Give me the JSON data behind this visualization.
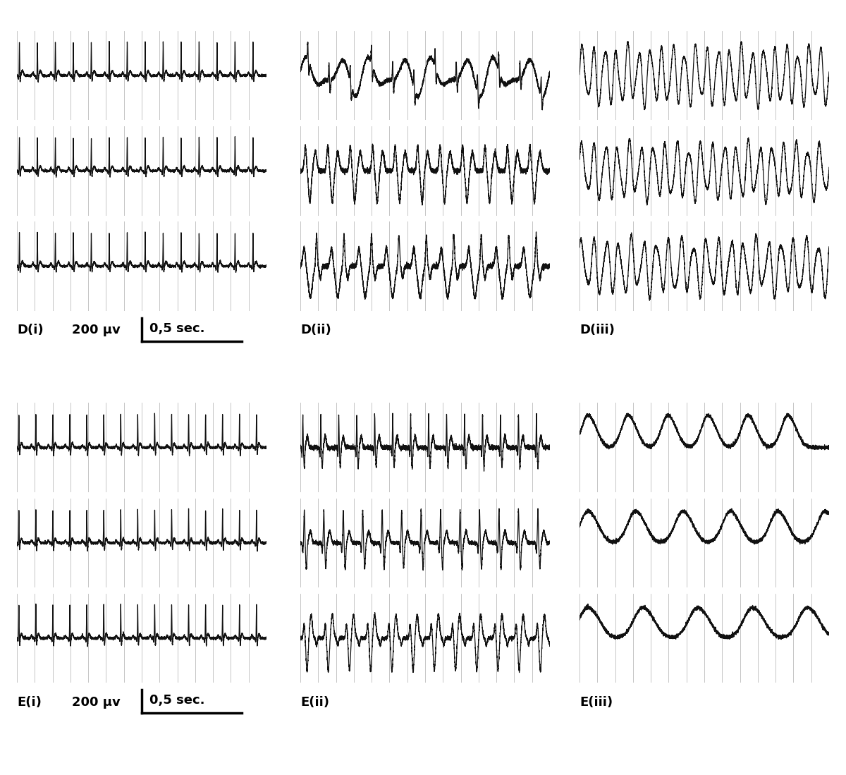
{
  "background_color": "#ffffff",
  "grid_color": "#bbbbbb",
  "line_color": "#111111",
  "n_cols": 3,
  "n_rows": 2,
  "traces_per_panel": 3,
  "vertical_lines": 14,
  "panel_labels": [
    [
      "D(i)",
      "D(ii)",
      "D(iii)"
    ],
    [
      "E(i)",
      "E(ii)",
      "E(iii)"
    ]
  ],
  "scale_label": "200 μv",
  "time_label": "0,5 sec.",
  "label_fontsize": 13,
  "label_fontweight": "bold"
}
